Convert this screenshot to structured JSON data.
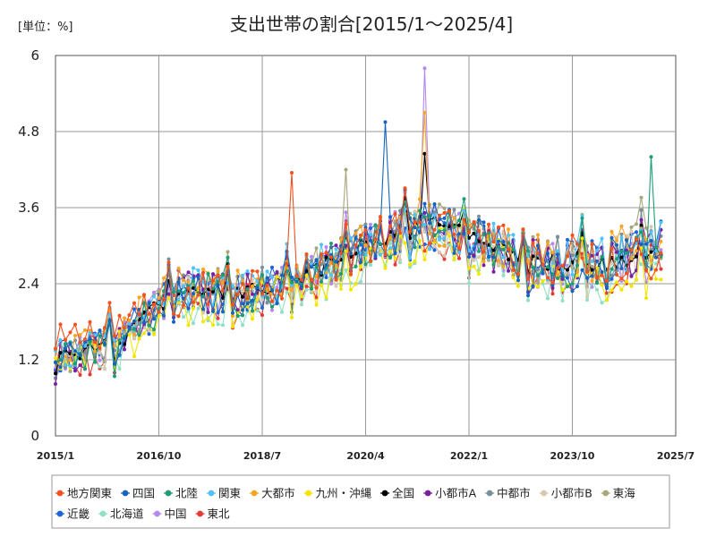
{
  "chart_data": {
    "type": "line",
    "title": "支出世帯の割合[2015/1～2025/4]",
    "unit_label": "[単位：%]",
    "y_ticks": [
      "0",
      "1.2",
      "2.4",
      "3.6",
      "4.8",
      "6"
    ],
    "ylim": [
      0,
      6
    ],
    "x_ticks": [
      "2015/1",
      "2016/10",
      "2018/7",
      "2020/4",
      "2022/1",
      "2023/10",
      "2025/7"
    ],
    "x_tick_months": [
      0,
      21,
      42,
      63,
      84,
      105,
      126
    ],
    "x_range_months": [
      0,
      126
    ],
    "months": 124,
    "grid": true,
    "legend_position": "bottom",
    "series": [
      {
        "name": "地方関東",
        "color": "#F4511E",
        "base": [
          1.45,
          1.75,
          2.15,
          2.45,
          2.45,
          3.0,
          3.3,
          3.1,
          2.8,
          2.8,
          2.85
        ],
        "spike": {
          "m": 48,
          "v": 4.15
        }
      },
      {
        "name": "四国",
        "color": "#1565C0",
        "base": [
          1.2,
          1.45,
          2.25,
          2.15,
          2.35,
          2.9,
          3.45,
          3.05,
          2.65,
          2.65,
          3.05
        ],
        "spike": {
          "m": 67,
          "v": 4.95
        }
      },
      {
        "name": "北陸",
        "color": "#1B9E77",
        "base": [
          1.15,
          1.4,
          2.3,
          2.2,
          2.4,
          2.95,
          3.35,
          3.1,
          2.7,
          2.7,
          3.2
        ],
        "spike": {
          "m": 121,
          "v": 4.4
        }
      },
      {
        "name": "関東",
        "color": "#4FC3F7",
        "base": [
          1.3,
          1.5,
          2.35,
          2.3,
          2.5,
          3.0,
          3.35,
          3.15,
          2.75,
          2.8,
          3.1
        ]
      },
      {
        "name": "大都市",
        "color": "#F5A623",
        "base": [
          1.3,
          1.55,
          2.4,
          2.35,
          2.55,
          3.05,
          3.4,
          3.15,
          2.8,
          2.85,
          3.0
        ],
        "spike": {
          "m": 75,
          "v": 5.1
        }
      },
      {
        "name": "九州・沖縄",
        "color": "#F2E600",
        "base": [
          1.1,
          1.35,
          2.05,
          2.05,
          2.25,
          2.75,
          3.05,
          2.85,
          2.5,
          2.5,
          2.6
        ]
      },
      {
        "name": "全国",
        "color": "#000000",
        "base": [
          1.25,
          1.45,
          2.3,
          2.25,
          2.45,
          2.95,
          3.35,
          3.1,
          2.75,
          2.75,
          3.0
        ],
        "spike": {
          "m": 75,
          "v": 4.45
        }
      },
      {
        "name": "小都市A",
        "color": "#7B1FA2",
        "base": [
          1.2,
          1.45,
          2.3,
          2.2,
          2.4,
          2.9,
          3.3,
          3.05,
          2.7,
          2.7,
          2.95
        ]
      },
      {
        "name": "中都市",
        "color": "#78909C",
        "base": [
          1.25,
          1.45,
          2.3,
          2.25,
          2.45,
          2.95,
          3.35,
          3.1,
          2.75,
          2.75,
          3.05
        ]
      },
      {
        "name": "小都市B",
        "color": "#D9C7AE",
        "base": [
          1.2,
          1.4,
          2.25,
          2.2,
          2.35,
          2.9,
          3.25,
          3.0,
          2.7,
          2.7,
          2.95
        ]
      },
      {
        "name": "東海",
        "color": "#A7A77A",
        "base": [
          1.25,
          1.5,
          2.35,
          2.3,
          2.5,
          3.0,
          3.4,
          3.15,
          2.8,
          2.8,
          3.1
        ],
        "spike": {
          "m": 59,
          "v": 4.2
        }
      },
      {
        "name": "近畿",
        "color": "#1E64D8",
        "base": [
          1.25,
          1.45,
          2.3,
          2.25,
          2.45,
          2.95,
          3.3,
          3.1,
          2.75,
          2.75,
          3.05
        ]
      },
      {
        "name": "北海道",
        "color": "#8FE0C3",
        "base": [
          1.1,
          1.3,
          2.1,
          2.05,
          2.2,
          2.7,
          3.1,
          2.9,
          2.4,
          2.5,
          2.7
        ]
      },
      {
        "name": "中国",
        "color": "#B388F0",
        "base": [
          1.2,
          1.45,
          2.3,
          2.2,
          2.4,
          2.95,
          3.4,
          3.1,
          2.7,
          2.75,
          3.0
        ],
        "spike": {
          "m": 75,
          "v": 5.8
        }
      },
      {
        "name": "東北",
        "color": "#E53935",
        "base": [
          1.15,
          1.35,
          2.2,
          2.1,
          2.3,
          2.85,
          3.2,
          2.95,
          2.6,
          2.6,
          2.9
        ]
      }
    ]
  }
}
